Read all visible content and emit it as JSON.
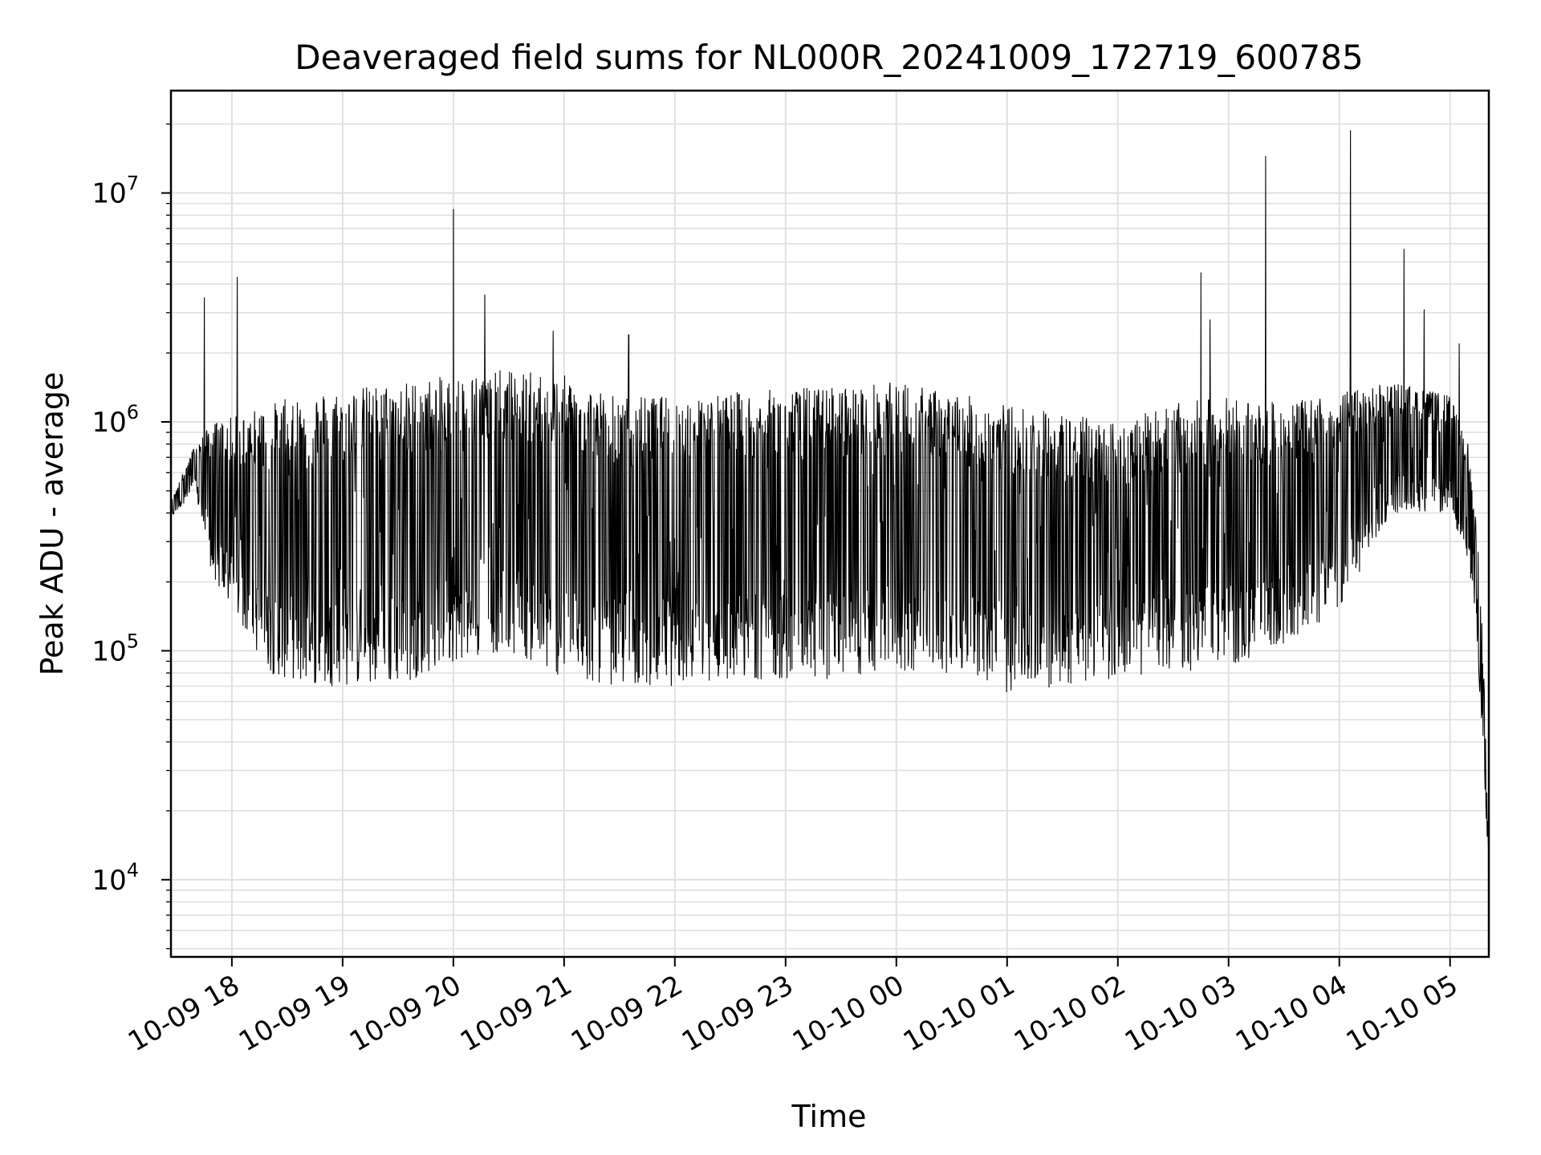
{
  "chart_data": {
    "type": "line",
    "title": "Deaveraged field sums for NL000R_20241009_172719_600785",
    "xlabel": "Time",
    "ylabel": "Peak ADU - average",
    "yscale": "log",
    "grid": true,
    "line_color": "#000000",
    "grid_color": "#e0e0e0",
    "xlim": [
      "2024-10-09 17:27",
      "2024-10-10 05:21"
    ],
    "ylim": [
      4600,
      28000000
    ],
    "x_tick_labels": [
      "10-09 18",
      "10-09 19",
      "10-09 20",
      "10-09 21",
      "10-09 22",
      "10-09 23",
      "10-10 00",
      "10-10 01",
      "10-10 02",
      "10-10 03",
      "10-10 04",
      "10-10 05"
    ],
    "y_tick_labels": [
      {
        "base": "10",
        "exp": "4"
      },
      {
        "base": "10",
        "exp": "5"
      },
      {
        "base": "10",
        "exp": "6"
      },
      {
        "base": "10",
        "exp": "7"
      }
    ],
    "series": [
      {
        "envelope_x": [
          "2024-10-09 17:27",
          "2024-10-09 17:40",
          "2024-10-09 17:50",
          "2024-10-09 18:00",
          "2024-10-09 18:20",
          "2024-10-09 18:40",
          "2024-10-09 19:00",
          "2024-10-09 19:30",
          "2024-10-09 20:00",
          "2024-10-09 20:30",
          "2024-10-09 21:00",
          "2024-10-09 21:30",
          "2024-10-09 22:00",
          "2024-10-09 22:30",
          "2024-10-09 23:00",
          "2024-10-09 23:30",
          "2024-10-10 00:00",
          "2024-10-10 00:30",
          "2024-10-10 01:00",
          "2024-10-10 01:30",
          "2024-10-10 02:00",
          "2024-10-10 02:30",
          "2024-10-10 03:00",
          "2024-10-10 03:30",
          "2024-10-10 04:00",
          "2024-10-10 04:30",
          "2024-10-10 05:00",
          "2024-10-10 05:10",
          "2024-10-10 05:15",
          "2024-10-10 05:18",
          "2024-10-10 05:21"
        ],
        "envelope_high": [
          450000,
          800000,
          1000000,
          1050000,
          1200000,
          1350000,
          1400000,
          1500000,
          1600000,
          1700000,
          1600000,
          1300000,
          1300000,
          1350000,
          1400000,
          1450000,
          1500000,
          1350000,
          1200000,
          1100000,
          1000000,
          1200000,
          1300000,
          1200000,
          1350000,
          1500000,
          1300000,
          800000,
          300000,
          100000,
          12000
        ],
        "envelope_low": [
          380000,
          500000,
          200000,
          150000,
          80000,
          70000,
          70000,
          70000,
          90000,
          100000,
          75000,
          70000,
          70000,
          75000,
          75000,
          75000,
          80000,
          80000,
          65000,
          70000,
          75000,
          80000,
          85000,
          100000,
          150000,
          400000,
          400000,
          250000,
          100000,
          30000,
          10000
        ],
        "spike_x": [
          "2024-10-09 17:45",
          "2024-10-09 18:03",
          "2024-10-09 20:00",
          "2024-10-09 20:17",
          "2024-10-09 20:54",
          "2024-10-09 21:35",
          "2024-10-10 02:45",
          "2024-10-10 02:50",
          "2024-10-10 03:20",
          "2024-10-10 04:06",
          "2024-10-10 04:35",
          "2024-10-10 04:46",
          "2024-10-10 05:05"
        ],
        "spike_y": [
          3500000,
          4300000,
          8500000,
          3600000,
          2500000,
          2400000,
          4500000,
          2800000,
          14500000,
          18800000,
          5700000,
          3100000,
          2200000
        ]
      }
    ]
  }
}
